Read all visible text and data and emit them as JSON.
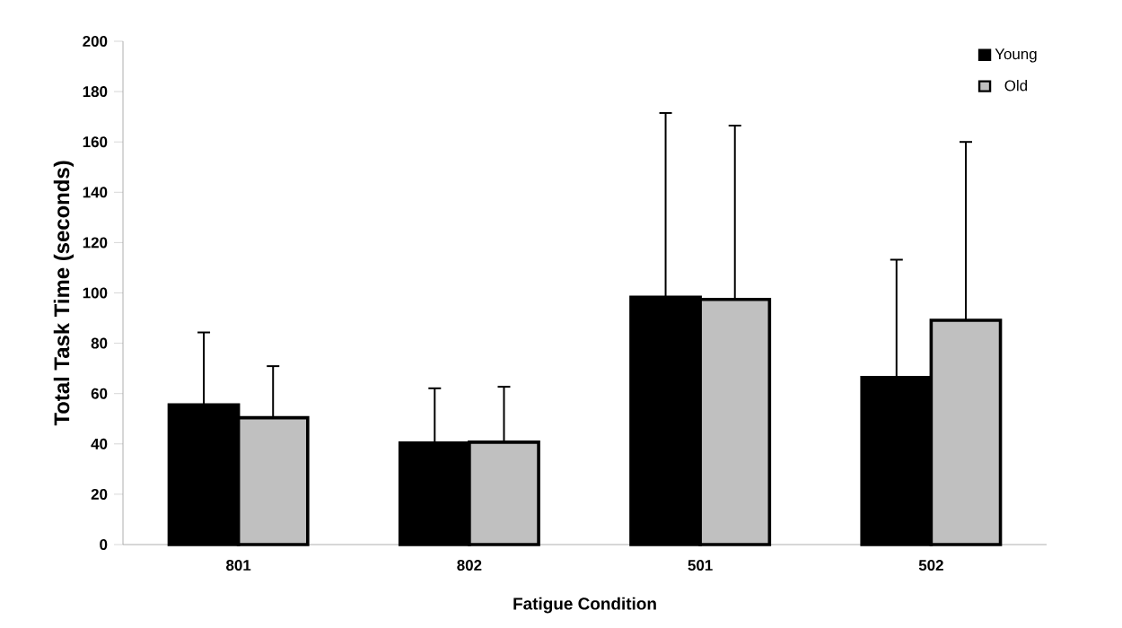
{
  "chart_data": {
    "type": "bar",
    "xlabel": "Fatigue Condition",
    "ylabel": "Total Task Time (seconds)",
    "categories": [
      "801",
      "802",
      "501",
      "502"
    ],
    "series": [
      {
        "name": "Young",
        "color": "#000000",
        "values": [
          55.5,
          40.4,
          98.3,
          66.4
        ],
        "errors": [
          [
            55.5,
            84.3
          ],
          [
            40.4,
            62.1
          ],
          [
            98.3,
            171.5
          ],
          [
            66.4,
            113.2
          ]
        ]
      },
      {
        "name": "Old",
        "color": "#c0c0c0",
        "values": [
          50.4,
          40.7,
          97.4,
          89.1
        ],
        "errors": [
          [
            50.4,
            70.9
          ],
          [
            40.7,
            62.7
          ],
          [
            97.4,
            166.5
          ],
          [
            89.1,
            160
          ]
        ]
      }
    ],
    "ylim": [
      0,
      200
    ],
    "yticks": [
      0,
      20,
      40,
      60,
      80,
      100,
      120,
      140,
      160,
      180,
      200
    ],
    "grid": false,
    "legend": "top right"
  }
}
